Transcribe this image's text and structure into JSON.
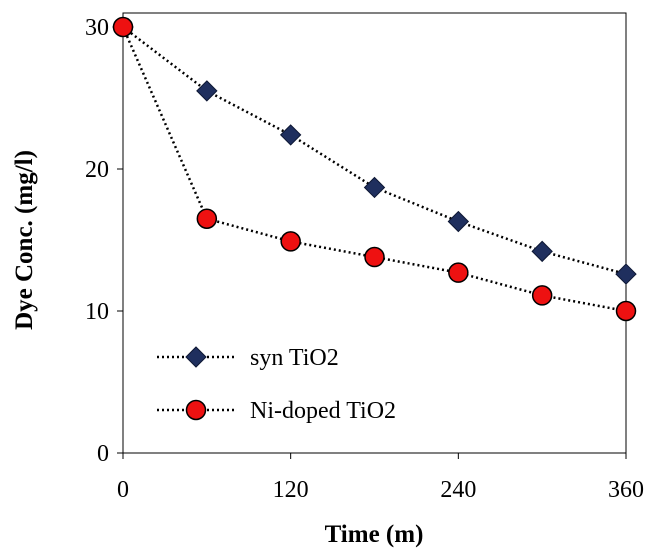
{
  "chart_data": {
    "type": "line",
    "xlabel": "Time (m)",
    "ylabel": "Dye Conc. (mg/l)",
    "xlim": [
      0,
      360
    ],
    "ylim": [
      0,
      30
    ],
    "xticks": [
      0,
      120,
      240,
      360
    ],
    "yticks": [
      0,
      10,
      20,
      30
    ],
    "grid": false,
    "legend_position": "bottom-left",
    "series": [
      {
        "name": "syn TiO2",
        "marker": "diamond",
        "color": "#1f2f5e",
        "x": [
          0,
          60,
          120,
          180,
          240,
          300,
          360
        ],
        "y": [
          30,
          25.5,
          22.4,
          18.7,
          16.3,
          14.2,
          12.6
        ]
      },
      {
        "name": "Ni-doped TiO2",
        "marker": "circle",
        "color": "#ee1111",
        "x": [
          0,
          60,
          120,
          180,
          240,
          300,
          360
        ],
        "y": [
          30,
          16.5,
          14.9,
          13.8,
          12.7,
          11.1,
          10.0
        ]
      }
    ]
  }
}
